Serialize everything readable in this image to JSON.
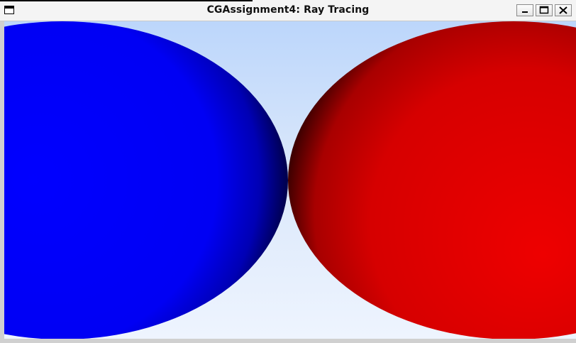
{
  "window": {
    "title": "CGAssignment4: Ray Tracing",
    "icon": "window-icon"
  },
  "controls": {
    "minimize_icon": "minimize-icon",
    "maximize_icon": "maximize-icon",
    "close_icon": "close-icon"
  },
  "scene": {
    "background_top_color": "#bcd6fb",
    "background_bottom_color": "#eef4fe",
    "spheres": [
      {
        "name": "blue-sphere",
        "color": "#0000ff",
        "shadow_color": "#00003a"
      },
      {
        "name": "red-sphere",
        "color": "#e00000",
        "shadow_color": "#2a0000"
      }
    ]
  }
}
